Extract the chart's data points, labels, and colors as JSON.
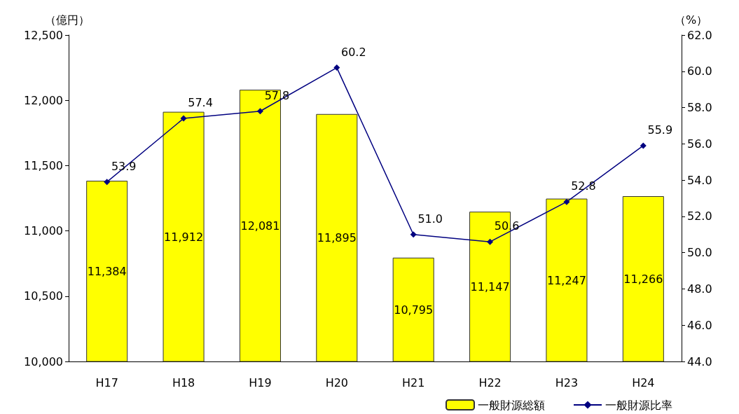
{
  "chart_data": {
    "type": "bar",
    "ylabel": "（億円）",
    "y2label": "（%）",
    "categories": [
      "H17",
      "H18",
      "H19",
      "H20",
      "H21",
      "H22",
      "H23",
      "H24"
    ],
    "series": [
      {
        "name": "一般財源総額",
        "color": "#ffff00",
        "values": [
          11384,
          11912,
          12081,
          11895,
          10795,
          11147,
          11247,
          11266
        ],
        "value_labels": [
          "11,384",
          "11,912",
          "12,081",
          "11,895",
          "10,795",
          "11,147",
          "11,247",
          "11,266"
        ]
      },
      {
        "name": "一般財源比率",
        "type": "line",
        "axis": "y2",
        "color": "#000080",
        "marker": "diamond",
        "values": [
          53.9,
          57.4,
          57.8,
          60.2,
          51.0,
          50.6,
          52.8,
          55.9
        ],
        "value_labels": [
          "53.9",
          "57.4",
          "57.8",
          "60.2",
          "51.0",
          "50.6",
          "52.8",
          "55.9"
        ]
      }
    ],
    "ylim": [
      10000,
      12500
    ],
    "yticks": [
      {
        "value": 10000,
        "label": "10,000"
      },
      {
        "value": 10500,
        "label": "10,500"
      },
      {
        "value": 11000,
        "label": "11,000"
      },
      {
        "value": 11500,
        "label": "11,500"
      },
      {
        "value": 12000,
        "label": "12,000"
      },
      {
        "value": 12500,
        "label": "12,500"
      }
    ],
    "y2lim": [
      44,
      62
    ],
    "y2ticks": [
      {
        "value": 44,
        "label": "44.0"
      },
      {
        "value": 46,
        "label": "46.0"
      },
      {
        "value": 48,
        "label": "48.0"
      },
      {
        "value": 50,
        "label": "50.0"
      },
      {
        "value": 52,
        "label": "52.0"
      },
      {
        "value": 54,
        "label": "54.0"
      },
      {
        "value": 56,
        "label": "56.0"
      },
      {
        "value": 58,
        "label": "58.0"
      },
      {
        "value": 60,
        "label": "60.0"
      },
      {
        "value": 62,
        "label": "62.0"
      }
    ],
    "grid": false,
    "legend": "bottom right"
  }
}
